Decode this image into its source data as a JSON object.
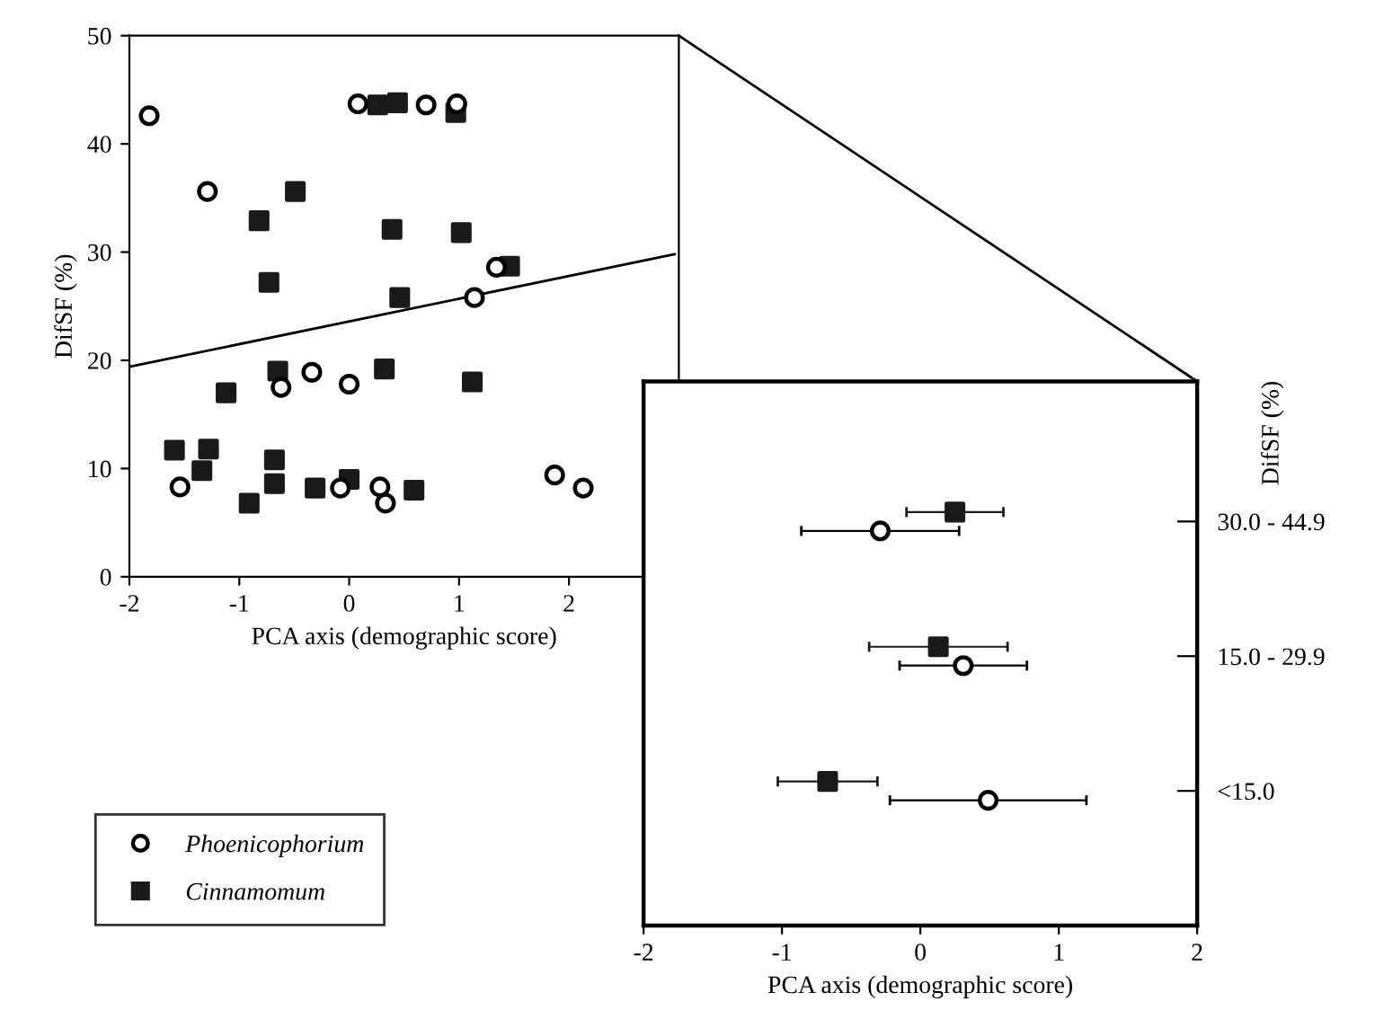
{
  "chart_data": [
    {
      "type": "scatter",
      "xlabel": "PCA axis (demographic score)",
      "ylabel": "DifSF (%)",
      "xlim": [
        -2,
        3
      ],
      "xticks": [
        -2,
        -1,
        0,
        1,
        2
      ],
      "ylim": [
        0,
        50
      ],
      "yticks": [
        0,
        10,
        20,
        30,
        40,
        50
      ],
      "grid": false,
      "legend": "bottom left",
      "series": [
        {
          "name": "Phoenicophorium",
          "color": "#000000",
          "marker": "circle",
          "x": [
            -1.82,
            -1.29,
            0.08,
            0.7,
            0.98,
            1.34,
            1.14,
            -0.34,
            -0.62,
            0.0,
            -1.54,
            -0.08,
            0.28,
            0.33,
            1.87,
            2.13
          ],
          "values": [
            42.6,
            35.6,
            43.7,
            43.6,
            43.7,
            28.6,
            25.8,
            18.9,
            17.5,
            17.8,
            8.3,
            8.2,
            8.3,
            6.8,
            9.4,
            8.2
          ]
        },
        {
          "name": "Cinnamomum",
          "color": "#1a1a1a",
          "marker": "square",
          "x": [
            0.26,
            0.44,
            0.97,
            -0.49,
            -0.82,
            0.39,
            1.02,
            -0.73,
            1.46,
            0.46,
            -0.65,
            0.32,
            -1.12,
            1.12,
            -1.59,
            -1.28,
            -1.34,
            -0.68,
            -0.68,
            -0.91,
            -0.31,
            0.0,
            0.59
          ],
          "values": [
            43.6,
            43.8,
            42.9,
            35.6,
            32.9,
            32.1,
            31.8,
            27.2,
            28.7,
            25.8,
            19.0,
            19.2,
            17.0,
            18.0,
            11.7,
            11.8,
            9.8,
            10.8,
            8.6,
            6.8,
            8.2,
            9.0,
            8.0
          ]
        },
        {
          "type": "line",
          "color": "#000000",
          "marker": "none",
          "line_style": "solid",
          "x": [
            -2,
            2.96
          ],
          "values": [
            19.4,
            29.8
          ]
        }
      ]
    },
    {
      "type": "scatter",
      "orientation": "horizontal",
      "xlabel": "PCA axis (demographic score)",
      "ylabel": "DifSF (%)",
      "categories": [
        "30.0 - 44.9",
        "15.0 - 29.9",
        "<15.0"
      ],
      "xlim": [
        -2,
        2
      ],
      "xticks": [
        -2,
        -1,
        0,
        1,
        2
      ],
      "grid": false,
      "series": [
        {
          "color": "#000000",
          "marker": "circle",
          "values": [
            -0.29,
            0.31,
            0.49
          ],
          "errors": [
            0.57,
            0.46,
            0.71
          ]
        },
        {
          "color": "#1a1a1a",
          "marker": "square",
          "values": [
            0.25,
            0.13,
            -0.67
          ],
          "errors": [
            0.35,
            0.5,
            0.36
          ]
        }
      ]
    }
  ]
}
